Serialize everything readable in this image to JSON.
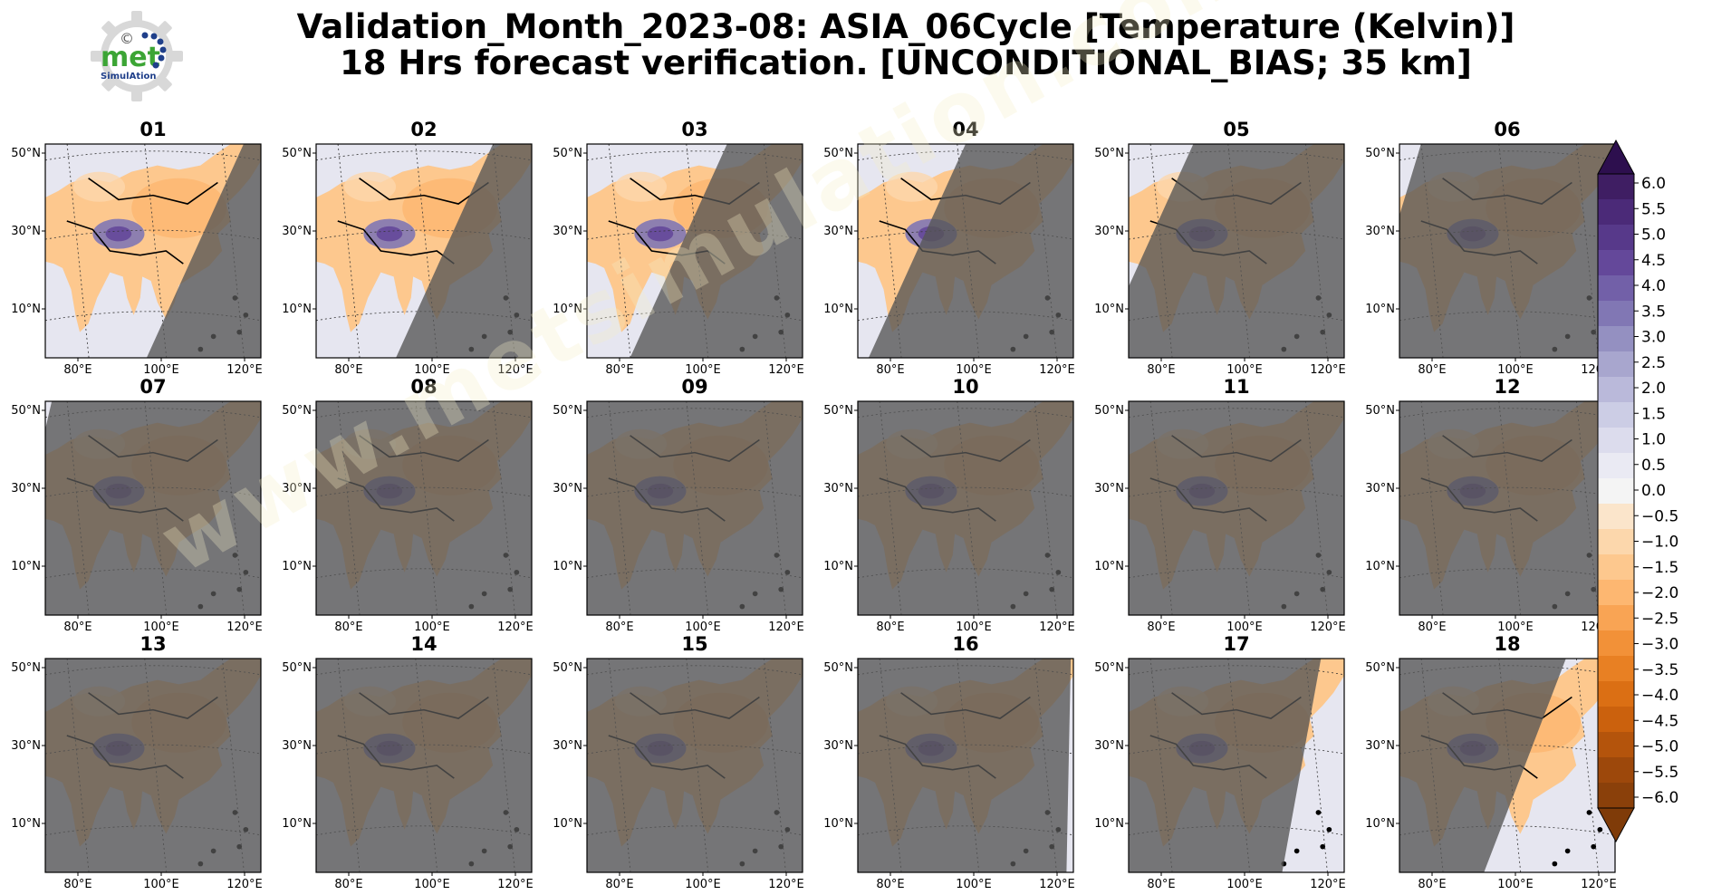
{
  "title": {
    "line1": "Validation_Month_2023-08: ASIA_06Cycle [Temperature (Kelvin)]",
    "line2": "18 Hrs forecast verification. [UNCONDITIONAL_BIAS; 35 km]"
  },
  "logo": {
    "text_top": "met",
    "text_bottom": "SimulAtion",
    "symbol": "©"
  },
  "watermark": {
    "text": "www.metsimulation.com"
  },
  "chart_data": {
    "type": "heatmap",
    "panels": [
      "01",
      "02",
      "03",
      "04",
      "05",
      "06",
      "07",
      "08",
      "09",
      "10",
      "11",
      "12",
      "13",
      "14",
      "15",
      "16",
      "17",
      "18"
    ],
    "grid_rows": 3,
    "grid_cols": 6,
    "lat_ticks": [
      "50°N",
      "30°N",
      "10°N"
    ],
    "lon_ticks": [
      "80°E",
      "100°E",
      "120°E"
    ],
    "night_shading": [
      {
        "panel": "01",
        "visible_fraction": 0.92
      },
      {
        "panel": "02",
        "visible_fraction": 0.82
      },
      {
        "panel": "03",
        "visible_fraction": 0.65
      },
      {
        "panel": "04",
        "visible_fraction": 0.5
      },
      {
        "panel": "05",
        "visible_fraction": 0.3
      },
      {
        "panel": "06",
        "visible_fraction": 0.1
      },
      {
        "panel": "07",
        "visible_fraction": 0.03
      },
      {
        "panel": "08",
        "visible_fraction": 0.0
      },
      {
        "panel": "09",
        "visible_fraction": 0.0
      },
      {
        "panel": "10",
        "visible_fraction": 0.0
      },
      {
        "panel": "11",
        "visible_fraction": 0.0
      },
      {
        "panel": "12",
        "visible_fraction": 0.0
      },
      {
        "panel": "13",
        "visible_fraction": 0.0
      },
      {
        "panel": "14",
        "visible_fraction": 0.0
      },
      {
        "panel": "15",
        "visible_fraction": 0.0
      },
      {
        "panel": "16",
        "visible_fraction": 0.02
      },
      {
        "panel": "17",
        "visible_fraction": 0.18
      },
      {
        "panel": "18",
        "visible_fraction": 0.38
      }
    ],
    "colorbar": {
      "ticks": [
        "6.0",
        "5.5",
        "5.0",
        "4.5",
        "4.0",
        "3.5",
        "3.0",
        "2.5",
        "2.0",
        "1.5",
        "1.0",
        "0.5",
        "0.0",
        "−0.5",
        "−1.0",
        "−1.5",
        "−2.0",
        "−2.5",
        "−3.0",
        "−3.5",
        "−4.0",
        "−4.5",
        "−5.0",
        "−5.5",
        "−6.0"
      ],
      "range": [
        -6.0,
        6.0
      ],
      "extend": "both",
      "colors_top_to_bottom": [
        "#3f1e63",
        "#4b2a78",
        "#57398a",
        "#64489a",
        "#7260a8",
        "#8177b4",
        "#9490c1",
        "#a8a6ce",
        "#bab9da",
        "#cccde5",
        "#dcdced",
        "#eaeaf3",
        "#f4f4f4",
        "#fbe5cb",
        "#fcd7ac",
        "#fdc88e",
        "#fdb771",
        "#f9a454",
        "#f29138",
        "#e88023",
        "#db6f14",
        "#cb610d",
        "#b4540c",
        "#9d480b",
        "#8a400a"
      ],
      "colors_top_bottom_extend": [
        "#2d0f4e",
        "#7f3b08"
      ]
    }
  }
}
